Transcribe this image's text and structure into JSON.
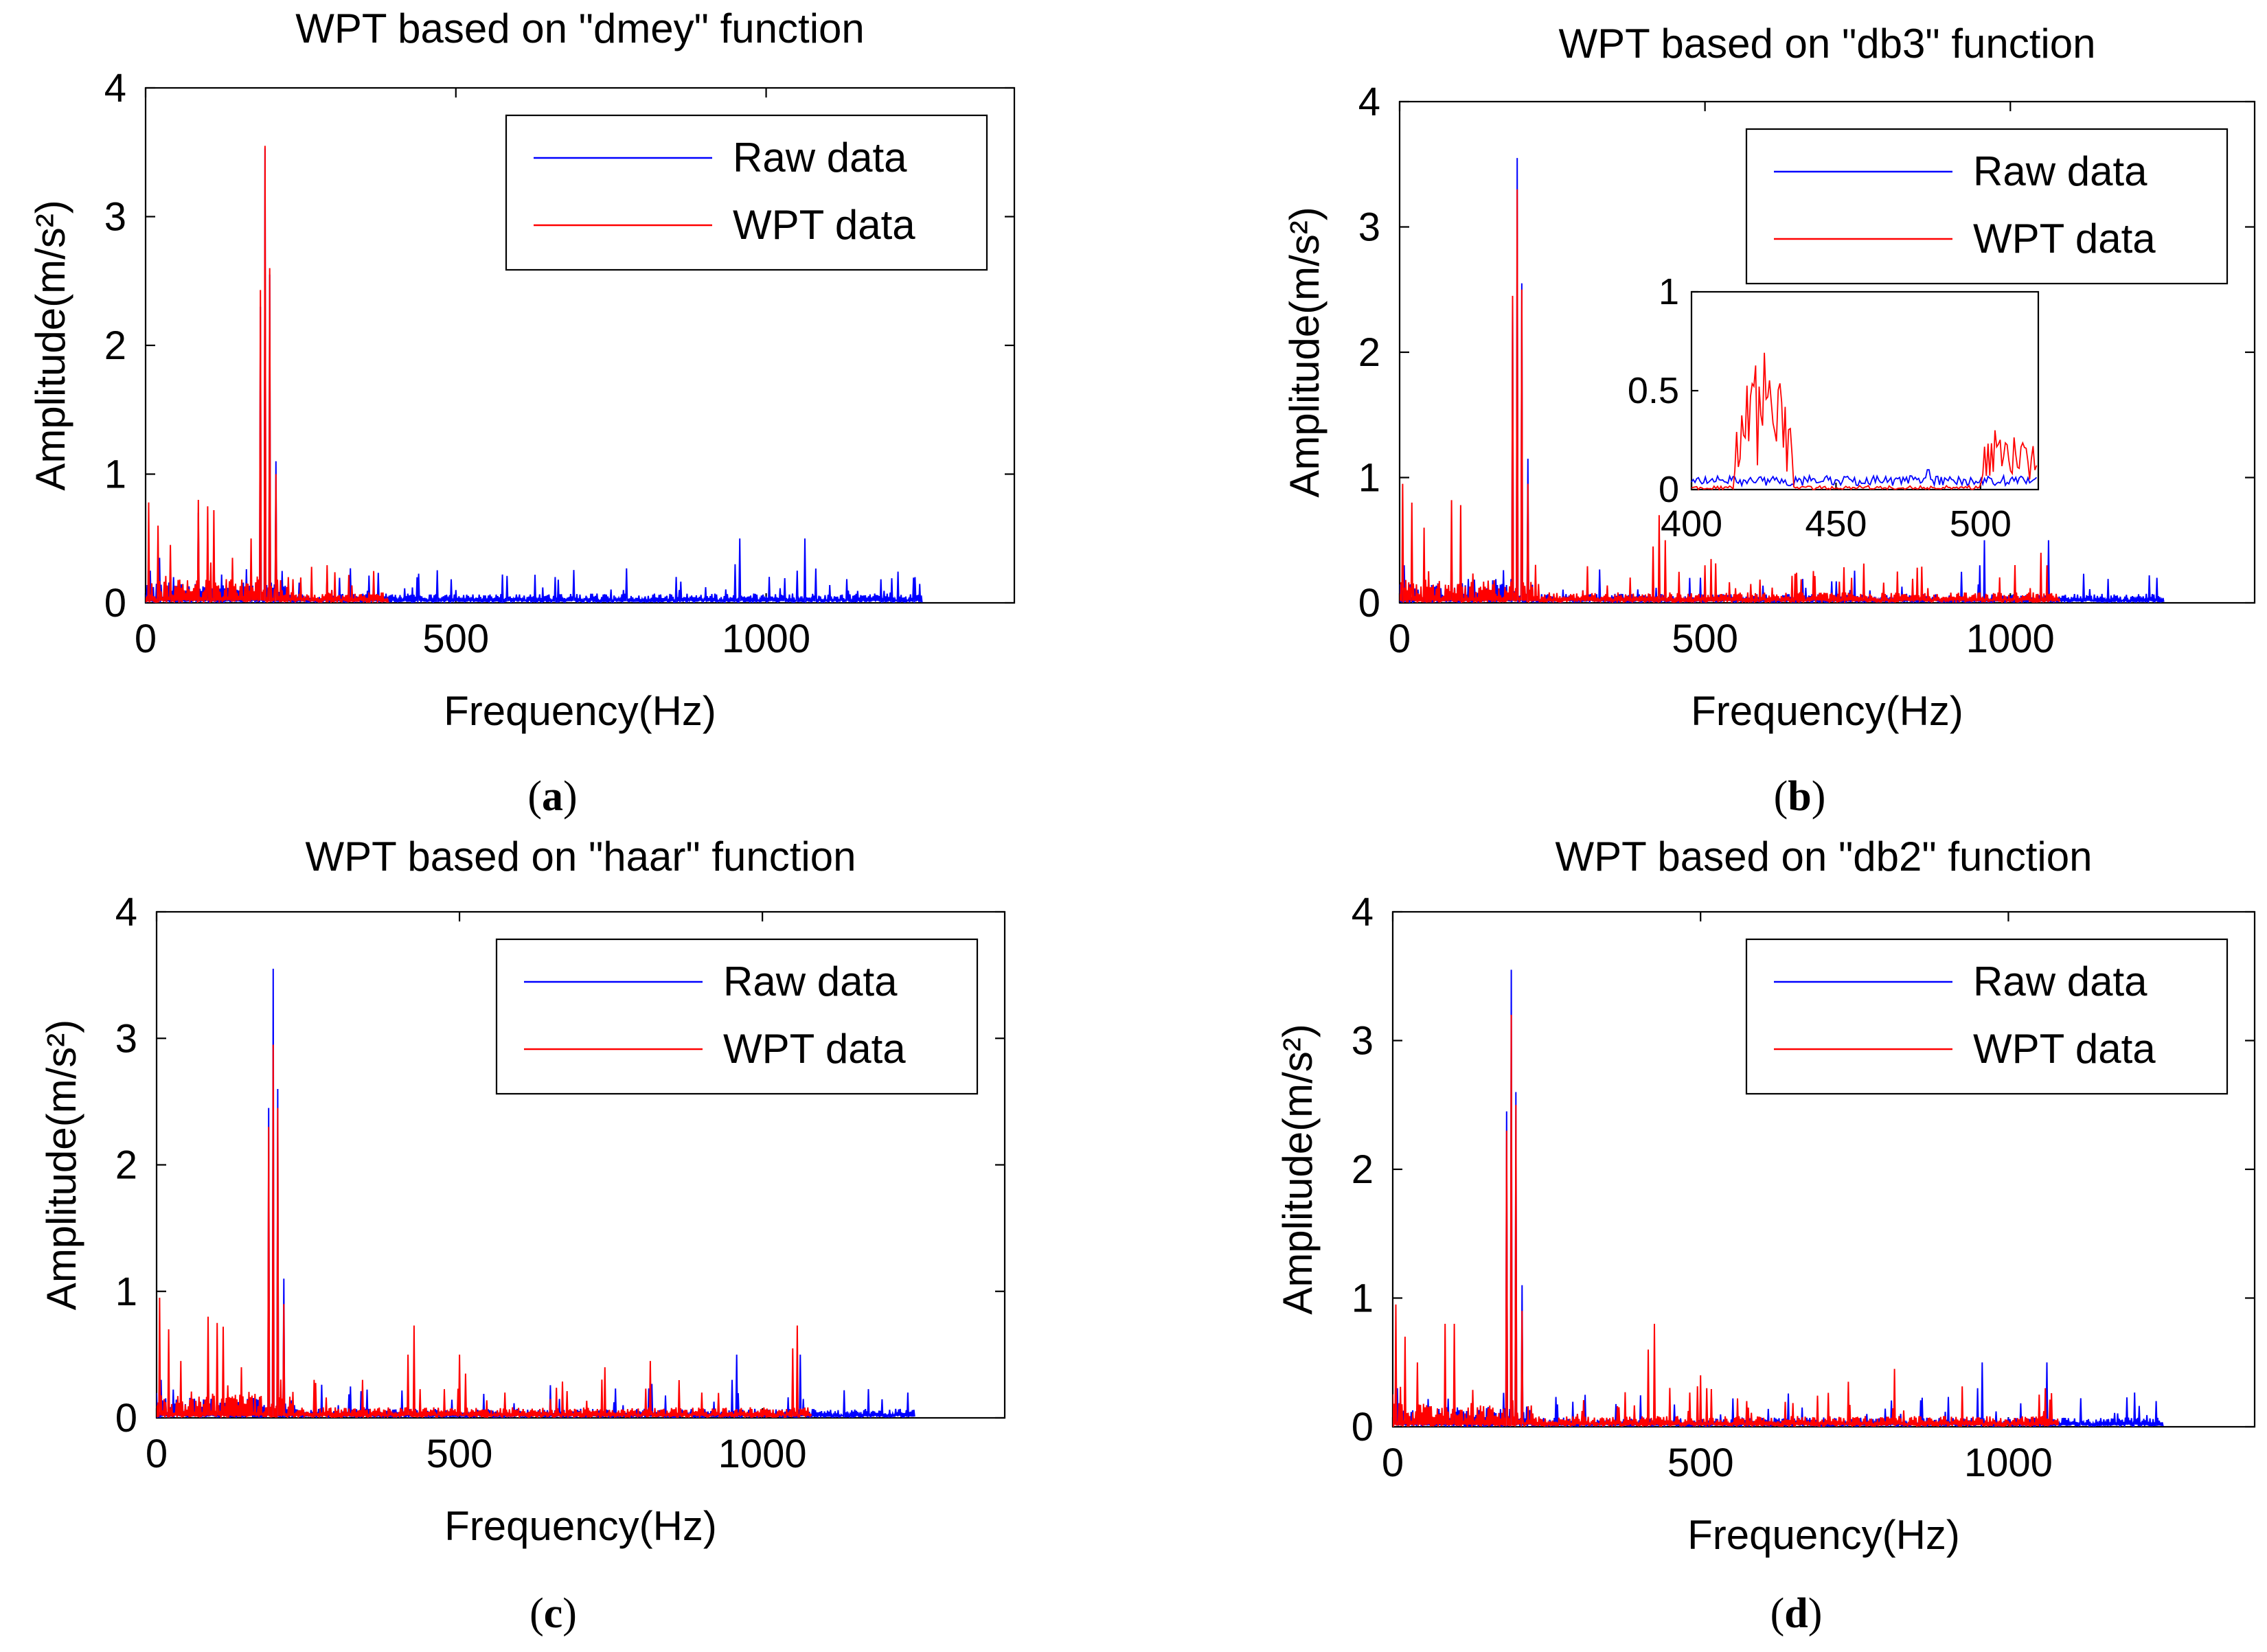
{
  "chart_data": [
    {
      "type": "line",
      "title": "WPT based on \"dmey\" function",
      "xlabel": "Frequency(Hz)",
      "ylabel": "Amplitude(m/s²)",
      "xlim": [
        0,
        1400
      ],
      "ylim": [
        0,
        4
      ],
      "xticks": [
        0,
        500,
        1000
      ],
      "yticks": [
        0,
        1,
        2,
        3,
        4
      ],
      "legend": [
        "Raw data",
        "WPT data"
      ],
      "legend_position": "top-right",
      "panel_label": "a",
      "colors": {
        "raw": "#0000ff",
        "wpt": "#ff0000"
      },
      "series": [
        {
          "name": "Raw data",
          "peaks": [
            [
              8,
              0.25
            ],
            [
              22,
              0.35
            ],
            [
              45,
              0.2
            ],
            [
              85,
              0.7
            ],
            [
              110,
              0.5
            ],
            [
              185,
              2.3
            ],
            [
              192,
              3.53
            ],
            [
              200,
              2.55
            ],
            [
              210,
              1.1
            ],
            [
              300,
              0.1
            ],
            [
              430,
              0.12
            ],
            [
              500,
              0.1
            ],
            [
              575,
              0.22
            ],
            [
              640,
              0.12
            ],
            [
              665,
              0.18
            ],
            [
              770,
              0.1
            ],
            [
              860,
              0.1
            ],
            [
              950,
              0.3
            ],
            [
              958,
              0.5
            ],
            [
              1050,
              0.25
            ],
            [
              1063,
              0.5
            ],
            [
              1200,
              0.08
            ],
            [
              1240,
              0.2
            ]
          ]
        },
        {
          "name": "WPT data",
          "peaks": [
            [
              5,
              0.78
            ],
            [
              20,
              0.6
            ],
            [
              40,
              0.45
            ],
            [
              85,
              0.8
            ],
            [
              100,
              0.75
            ],
            [
              110,
              0.72
            ],
            [
              140,
              0.35
            ],
            [
              170,
              0.5
            ],
            [
              185,
              2.43
            ],
            [
              192,
              3.55
            ],
            [
              200,
              2.6
            ],
            [
              210,
              1.0
            ],
            [
              230,
              0.2
            ],
            [
              300,
              0.1
            ],
            [
              380,
              0.08
            ]
          ]
        }
      ],
      "wpt_cutoff": 390
    },
    {
      "type": "line",
      "title": "WPT based on \"db3\" function",
      "xlabel": "Frequency(Hz)",
      "ylabel": "Amplitude(m/s²)",
      "xlim": [
        0,
        1400
      ],
      "ylim": [
        0,
        4
      ],
      "xticks": [
        0,
        500,
        1000
      ],
      "yticks": [
        0,
        1,
        2,
        3,
        4
      ],
      "legend": [
        "Raw data",
        "WPT data"
      ],
      "legend_position": "top-right",
      "panel_label": "b",
      "colors": {
        "raw": "#0000ff",
        "wpt": "#ff0000"
      },
      "series": [
        {
          "name": "Raw data",
          "peaks": [
            [
              8,
              0.3
            ],
            [
              85,
              0.4
            ],
            [
              185,
              2.4
            ],
            [
              192,
              3.55
            ],
            [
              200,
              2.55
            ],
            [
              210,
              1.15
            ],
            [
              300,
              0.1
            ],
            [
              420,
              0.12
            ],
            [
              575,
              0.12
            ],
            [
              665,
              0.12
            ],
            [
              770,
              0.1
            ],
            [
              950,
              0.3
            ],
            [
              958,
              0.5
            ],
            [
              1063,
              0.5
            ],
            [
              1240,
              0.2
            ]
          ]
        },
        {
          "name": "WPT data",
          "peaks": [
            [
              5,
              0.95
            ],
            [
              20,
              0.8
            ],
            [
              40,
              0.6
            ],
            [
              85,
              0.82
            ],
            [
              100,
              0.78
            ],
            [
              185,
              2.45
            ],
            [
              192,
              3.3
            ],
            [
              200,
              2.5
            ],
            [
              210,
              0.95
            ],
            [
              300,
              0.1
            ],
            [
              415,
              0.45
            ],
            [
              425,
              0.7
            ],
            [
              435,
              0.5
            ],
            [
              500,
              0.3
            ],
            [
              510,
              0.35
            ],
            [
              575,
              0.15
            ],
            [
              740,
              0.2
            ],
            [
              815,
              0.25
            ],
            [
              1050,
              0.4
            ],
            [
              1060,
              0.3
            ]
          ]
        }
      ],
      "wpt_cutoff": 1080,
      "inset": {
        "xlim": [
          400,
          520
        ],
        "ylim": [
          0,
          1
        ],
        "xticks": [
          400,
          450,
          500
        ],
        "yticks": [
          0,
          0.5,
          1
        ],
        "wpt_bands": [
          [
            415,
            435,
            0.7
          ],
          [
            500,
            520,
            0.35
          ]
        ],
        "raw_level": 0.05,
        "raw_peaks": [
          [
            482,
            0.1
          ]
        ]
      }
    },
    {
      "type": "line",
      "title": "WPT based on \"haar\" function",
      "xlabel": "Frequency(Hz)",
      "ylabel": "Amplitude(m/s²)",
      "xlim": [
        0,
        1400
      ],
      "ylim": [
        0,
        4
      ],
      "xticks": [
        0,
        500,
        1000
      ],
      "yticks": [
        0,
        1,
        2,
        3,
        4
      ],
      "legend": [
        "Raw data",
        "WPT data"
      ],
      "legend_position": "top-right",
      "panel_label": "c",
      "colors": {
        "raw": "#0000ff",
        "wpt": "#ff0000"
      },
      "series": [
        {
          "name": "Raw data",
          "peaks": [
            [
              8,
              0.3
            ],
            [
              85,
              0.5
            ],
            [
              185,
              2.45
            ],
            [
              192,
              3.55
            ],
            [
              200,
              2.6
            ],
            [
              210,
              1.1
            ],
            [
              300,
              0.1
            ],
            [
              575,
              0.15
            ],
            [
              665,
              0.15
            ],
            [
              770,
              0.1
            ],
            [
              950,
              0.3
            ],
            [
              958,
              0.5
            ],
            [
              1063,
              0.5
            ],
            [
              1240,
              0.2
            ]
          ]
        },
        {
          "name": "WPT data",
          "peaks": [
            [
              5,
              0.95
            ],
            [
              20,
              0.7
            ],
            [
              40,
              0.45
            ],
            [
              85,
              0.8
            ],
            [
              100,
              0.75
            ],
            [
              110,
              0.72
            ],
            [
              140,
              0.4
            ],
            [
              185,
              2.3
            ],
            [
              192,
              2.95
            ],
            [
              200,
              2.45
            ],
            [
              210,
              0.9
            ],
            [
              260,
              0.3
            ],
            [
              340,
              0.3
            ],
            [
              415,
              0.5
            ],
            [
              425,
              0.73
            ],
            [
              500,
              0.5
            ],
            [
              510,
              0.35
            ],
            [
              575,
              0.2
            ],
            [
              650,
              0.15
            ],
            [
              740,
              0.4
            ],
            [
              815,
              0.45
            ],
            [
              900,
              0.2
            ],
            [
              1050,
              0.55
            ],
            [
              1058,
              0.73
            ]
          ]
        }
      ],
      "wpt_cutoff": 1080
    },
    {
      "type": "line",
      "title": "WPT based on \"db2\" function",
      "xlabel": "Frequency(Hz)",
      "ylabel": "Amplitude(m/s²)",
      "xlim": [
        0,
        1400
      ],
      "ylim": [
        0,
        4
      ],
      "xticks": [
        0,
        500,
        1000
      ],
      "yticks": [
        0,
        1,
        2,
        3,
        4
      ],
      "legend": [
        "Raw data",
        "WPT data"
      ],
      "legend_position": "top-right",
      "panel_label": "d",
      "colors": {
        "raw": "#0000ff",
        "wpt": "#ff0000"
      },
      "series": [
        {
          "name": "Raw data",
          "peaks": [
            [
              8,
              0.3
            ],
            [
              85,
              0.4
            ],
            [
              185,
              2.45
            ],
            [
              192,
              3.55
            ],
            [
              200,
              2.6
            ],
            [
              210,
              1.1
            ],
            [
              300,
              0.1
            ],
            [
              575,
              0.15
            ],
            [
              665,
              0.15
            ],
            [
              770,
              0.1
            ],
            [
              950,
              0.3
            ],
            [
              958,
              0.5
            ],
            [
              1063,
              0.5
            ],
            [
              1240,
              0.2
            ]
          ]
        },
        {
          "name": "WPT data",
          "peaks": [
            [
              5,
              0.95
            ],
            [
              20,
              0.7
            ],
            [
              40,
              0.5
            ],
            [
              85,
              0.8
            ],
            [
              100,
              0.8
            ],
            [
              185,
              2.3
            ],
            [
              192,
              3.2
            ],
            [
              200,
              2.5
            ],
            [
              210,
              0.9
            ],
            [
              300,
              0.1
            ],
            [
              415,
              0.6
            ],
            [
              425,
              0.8
            ],
            [
              500,
              0.4
            ],
            [
              510,
              0.3
            ],
            [
              575,
              0.2
            ],
            [
              740,
              0.35
            ],
            [
              815,
              0.45
            ],
            [
              1050,
              0.25
            ],
            [
              1060,
              0.3
            ]
          ]
        }
      ],
      "wpt_cutoff": 1080
    }
  ]
}
